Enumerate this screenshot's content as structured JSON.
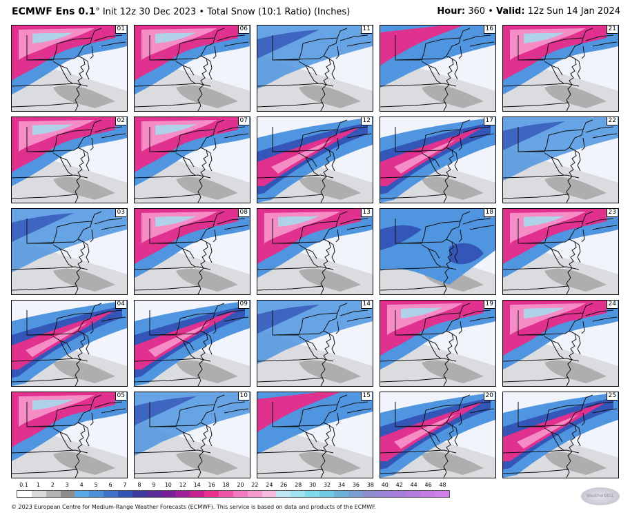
{
  "header": {
    "model": "ECMWF Ens 0.1",
    "degree": "°",
    "run": "Init 12z 30 Dec 2023 • Total Snow (10:1 Ratio) (Inches)",
    "hour_label": "Hour:",
    "hour_value": "360",
    "valid_label": "Valid:",
    "valid_value": "12z Sun 14 Jan 2024"
  },
  "members": [
    [
      "01",
      "06",
      "11",
      "16",
      "21"
    ],
    [
      "02",
      "07",
      "12",
      "17",
      "22"
    ],
    [
      "03",
      "08",
      "13",
      "18",
      "23"
    ],
    [
      "04",
      "09",
      "14",
      "19",
      "24"
    ],
    [
      "05",
      "10",
      "15",
      "20",
      "25"
    ]
  ],
  "panel_intensity": {
    "01": "heavy-north",
    "06": "heavy-north",
    "11": "moderate",
    "16": "moderate-north",
    "21": "heavy-north",
    "02": "heavy-north",
    "07": "heavy-north",
    "12": "heavy-band",
    "17": "heavy-band",
    "22": "moderate",
    "03": "moderate",
    "08": "heavy-north",
    "13": "heavy-north",
    "18": "moderate-wide",
    "23": "heavy-north",
    "04": "heavy-band",
    "09": "heavy-band",
    "14": "moderate",
    "19": "heavy-north",
    "24": "heavy-north",
    "05": "heavy-north",
    "10": "moderate",
    "15": "moderate-north",
    "20": "heavy-band",
    "25": "heavy-band"
  },
  "legend": {
    "labels": [
      "0.1",
      "1",
      "2",
      "3",
      "4",
      "5",
      "6",
      "7",
      "8",
      "9",
      "10",
      "12",
      "14",
      "16",
      "18",
      "20",
      "22",
      "24",
      "26",
      "28",
      "30",
      "32",
      "34",
      "36",
      "38",
      "40",
      "42",
      "44",
      "46",
      "48"
    ],
    "colors": [
      "#ffffff",
      "#d9d9d9",
      "#b3b3b3",
      "#8c8c8c",
      "#5aa9e6",
      "#4e8fd9",
      "#3f73cc",
      "#3455b8",
      "#3a3aa0",
      "#5a2c9a",
      "#7a1f9a",
      "#a01f9c",
      "#c9208f",
      "#e8308f",
      "#f055a8",
      "#f478bd",
      "#f79ad0",
      "#f8b9de",
      "#bfe8f5",
      "#9fe3f0",
      "#7fdbeb",
      "#6fc9e3",
      "#6db2d9",
      "#7a9fd3",
      "#8c8ed0",
      "#9a85d6",
      "#a77edb",
      "#b47ae0",
      "#c57ae6",
      "#d07ee8"
    ]
  },
  "logo_text": "WeatherBELL",
  "footer": "© 2023 European Centre for Medium-Range Weather Forecasts (ECMWF). This service is based on data and products of the ECMWF.",
  "colors": {
    "light_gray": "#c8c8c8",
    "mid_gray": "#8f8f8f",
    "dark_gray": "#5e5e5e",
    "blue": "#4f95e0",
    "deep_blue": "#3456b8",
    "purple": "#6b2aa3",
    "magenta": "#e0318f",
    "pink": "#f58cc5",
    "cyan": "#9fe3f0",
    "background": "#f2f4fb"
  }
}
